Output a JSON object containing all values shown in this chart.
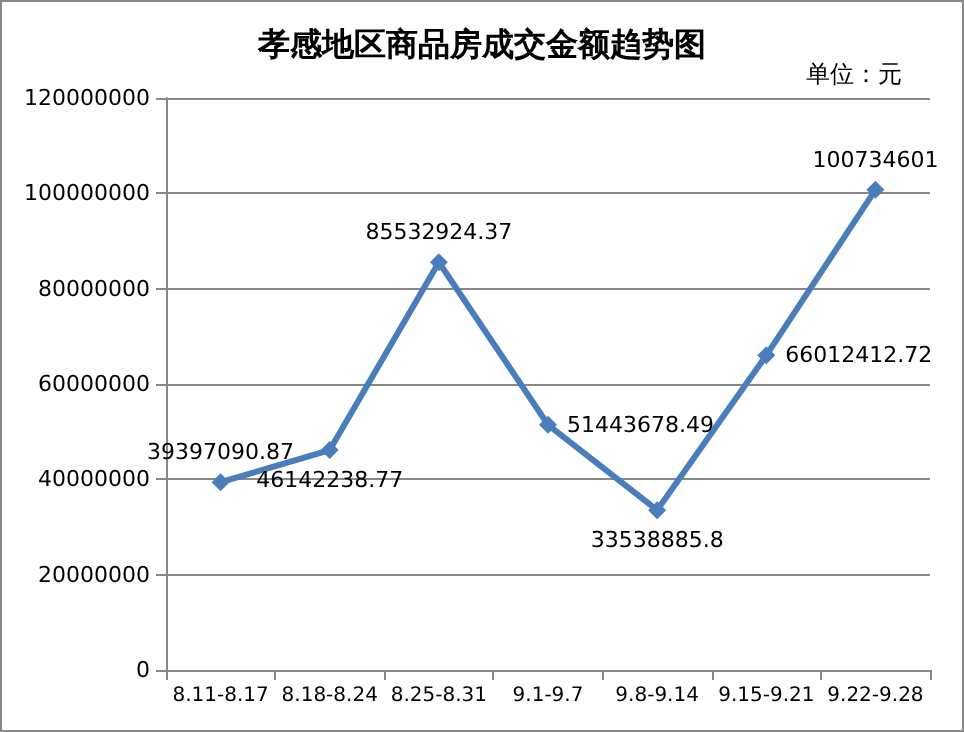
{
  "chart_data": {
    "type": "line",
    "title": "孝感地区商品房成交金额趋势图",
    "annotations": [
      "单位：元"
    ],
    "categories": [
      "8.11-8.17",
      "8.18-8.24",
      "8.25-8.31",
      "9.1-9.7",
      "9.8-9.14",
      "9.15-9.21",
      "9.22-9.28"
    ],
    "series": [
      {
        "color": "#4a7ebb",
        "values": [
          39397090.87,
          46142238.77,
          85532924.37,
          51443678.49,
          33538885.8,
          66012412.72,
          100734601
        ]
      }
    ],
    "ylim": [
      0,
      120000000
    ],
    "yticks": [
      0,
      20000000,
      40000000,
      60000000,
      80000000,
      100000000,
      120000000
    ],
    "grid": "y",
    "marker": "diamond",
    "line_style": "solid",
    "data_labels": true
  }
}
